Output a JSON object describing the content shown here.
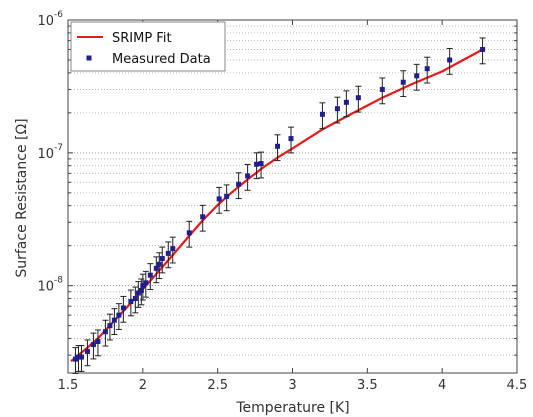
{
  "chart_data": {
    "type": "scatter",
    "xlabel": "Temperature [K]",
    "ylabel": "Surface Resistance [Ω]",
    "xlim": [
      1.5,
      4.5
    ],
    "ylim": [
      2.2e-09,
      1e-06
    ],
    "y_scale": "log",
    "grid": "horizontal dotted major and minor (log) lines",
    "legend_position": "top-left",
    "x_ticks": [
      "1.5",
      "2",
      "2.5",
      "3",
      "3.5",
      "4",
      "4.5"
    ],
    "y_ticks": [
      {
        "value": 1e-08,
        "base": "10",
        "exp": "-8"
      },
      {
        "value": 1e-07,
        "base": "10",
        "exp": "-7"
      },
      {
        "value": 1e-06,
        "base": "10",
        "exp": "-6"
      }
    ],
    "colors": {
      "fit": "#e41a1c",
      "data": "#1f1f8f",
      "errorbar": "#222222"
    },
    "series": [
      {
        "name": "SRIMP Fit",
        "kind": "line",
        "x": [
          1.52,
          1.6,
          1.7,
          1.8,
          1.9,
          2.0,
          2.1,
          2.2,
          2.3,
          2.4,
          2.5,
          2.6,
          2.7,
          2.8,
          2.9,
          3.0,
          3.2,
          3.4,
          3.6,
          3.8,
          4.0,
          4.27
        ],
        "y": [
          2.7e-09,
          3.2e-09,
          4e-09,
          5.3e-09,
          7e-09,
          9.4e-09,
          1.26e-08,
          1.7e-08,
          2.3e-08,
          3.1e-08,
          4.05e-08,
          5.1e-08,
          6.3e-08,
          7.7e-08,
          9.2e-08,
          1.08e-07,
          1.5e-07,
          1.98e-07,
          2.6e-07,
          3.3e-07,
          4.1e-07,
          6e-07
        ]
      },
      {
        "name": "Measured Data",
        "kind": "errorbar",
        "x": [
          1.55,
          1.57,
          1.59,
          1.63,
          1.67,
          1.7,
          1.75,
          1.78,
          1.81,
          1.84,
          1.87,
          1.92,
          1.95,
          1.97,
          1.99,
          2.0,
          2.02,
          2.05,
          2.09,
          2.11,
          2.13,
          2.17,
          2.2,
          2.31,
          2.4,
          2.51,
          2.56,
          2.64,
          2.7,
          2.76,
          2.79,
          2.9,
          2.99,
          3.2,
          3.3,
          3.36,
          3.44,
          3.6,
          3.74,
          3.83,
          3.9,
          4.05,
          4.27
        ],
        "y": [
          2.8e-09,
          2.9e-09,
          2.9e-09,
          3.2e-09,
          3.6e-09,
          3.8e-09,
          4.5e-09,
          5e-09,
          5.5e-09,
          6e-09,
          6.8e-09,
          7.6e-09,
          8e-09,
          8.8e-09,
          9.2e-09,
          1e-08,
          1.05e-08,
          1.2e-08,
          1.35e-08,
          1.45e-08,
          1.6e-08,
          1.75e-08,
          1.9e-08,
          2.5e-08,
          3.3e-08,
          4.5e-08,
          4.7e-08,
          5.8e-08,
          6.7e-08,
          8.2e-08,
          8.3e-08,
          1.12e-07,
          1.28e-07,
          1.95e-07,
          2.15e-07,
          2.4e-07,
          2.6e-07,
          3e-07,
          3.4e-07,
          3.8e-07,
          4.3e-07,
          5e-07,
          6e-07
        ],
        "err_rel": 0.22
      }
    ]
  }
}
